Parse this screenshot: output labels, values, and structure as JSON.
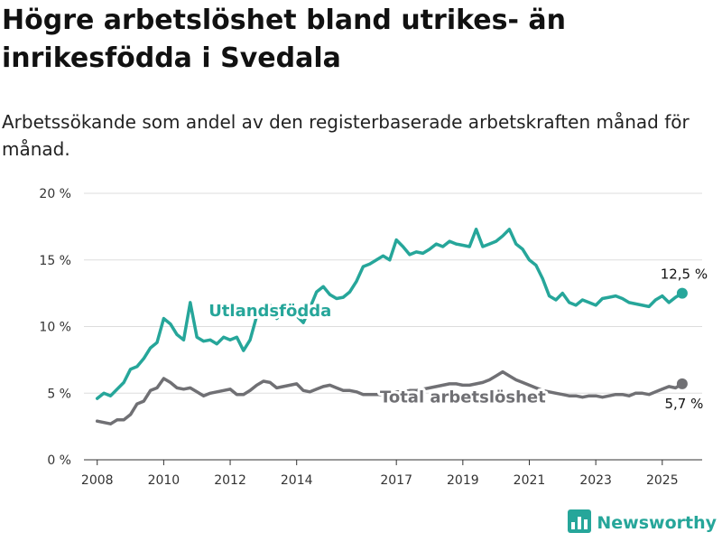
{
  "title": "Högre arbetslöshet bland utrikes- än inrikesfödda i Svedala",
  "subtitle": "Arbetssökande som andel av den registerbaserade arbetskraften månad för månad.",
  "brand": {
    "name": "Newsworthy",
    "icon": "bar-chart-logo-icon",
    "color": "#26a69a"
  },
  "chart_data": {
    "type": "line",
    "title": "Högre arbetslöshet bland utrikes- än inrikesfödda i Svedala",
    "subtitle": "Arbetssökande som andel av den registerbaserade arbetskraften månad för månad.",
    "xlabel": "",
    "ylabel": "",
    "xlim": [
      2007.6,
      2026.2
    ],
    "ylim": [
      0,
      20
    ],
    "x_ticks": [
      2008,
      2010,
      2012,
      2014,
      2017,
      2019,
      2021,
      2023,
      2025
    ],
    "x_tick_labels": [
      "2008",
      "2010",
      "2012",
      "2014",
      "2017",
      "2019",
      "2021",
      "2023",
      "2025"
    ],
    "y_ticks": [
      0,
      5,
      10,
      15,
      20
    ],
    "y_tick_labels": [
      "0 %",
      "5 %",
      "10 %",
      "15 %",
      "20 %"
    ],
    "grid": true,
    "legend": "none",
    "series": [
      {
        "name": "Utlandsfödda",
        "color": "#26a69a",
        "end_label": "12,5 %",
        "x": [
          2008.0,
          2008.2,
          2008.4,
          2008.6,
          2008.8,
          2009.0,
          2009.2,
          2009.4,
          2009.6,
          2009.8,
          2010.0,
          2010.2,
          2010.4,
          2010.6,
          2010.8,
          2011.0,
          2011.2,
          2011.4,
          2011.6,
          2011.8,
          2012.0,
          2012.2,
          2012.4,
          2012.6,
          2012.8,
          2013.0,
          2013.2,
          2013.4,
          2013.6,
          2013.8,
          2014.0,
          2014.2,
          2014.4,
          2014.6,
          2014.8,
          2015.0,
          2015.2,
          2015.4,
          2015.6,
          2015.8,
          2016.0,
          2016.2,
          2016.4,
          2016.6,
          2016.8,
          2017.0,
          2017.2,
          2017.4,
          2017.6,
          2017.8,
          2018.0,
          2018.2,
          2018.4,
          2018.6,
          2018.8,
          2019.0,
          2019.2,
          2019.4,
          2019.6,
          2019.8,
          2020.0,
          2020.2,
          2020.4,
          2020.6,
          2020.8,
          2021.0,
          2021.2,
          2021.4,
          2021.6,
          2021.8,
          2022.0,
          2022.2,
          2022.4,
          2022.6,
          2022.8,
          2023.0,
          2023.2,
          2023.4,
          2023.6,
          2023.8,
          2024.0,
          2024.2,
          2024.4,
          2024.6,
          2024.8,
          2025.0,
          2025.2,
          2025.4,
          2025.6
        ],
        "y": [
          4.6,
          5.0,
          4.8,
          5.3,
          5.8,
          6.8,
          7.0,
          7.6,
          8.4,
          8.8,
          10.6,
          10.2,
          9.4,
          9.0,
          11.8,
          9.2,
          8.9,
          9.0,
          8.7,
          9.2,
          9.0,
          9.2,
          8.2,
          9.0,
          10.8,
          11.4,
          11.6,
          10.6,
          11.1,
          10.7,
          10.8,
          10.3,
          11.4,
          12.6,
          13.0,
          12.4,
          12.1,
          12.2,
          12.6,
          13.4,
          14.5,
          14.7,
          15.0,
          15.3,
          15.0,
          16.5,
          16.0,
          15.4,
          15.6,
          15.5,
          15.8,
          16.2,
          16.0,
          16.4,
          16.2,
          16.1,
          16.0,
          17.3,
          16.0,
          16.2,
          16.4,
          16.8,
          17.3,
          16.2,
          15.8,
          15.0,
          14.6,
          13.6,
          12.3,
          12.0,
          12.5,
          11.8,
          11.6,
          12.0,
          11.8,
          11.6,
          12.1,
          12.2,
          12.3,
          12.1,
          11.8,
          11.7,
          11.6,
          11.5,
          12.0,
          12.3,
          11.8,
          12.2,
          12.5
        ]
      },
      {
        "name": "Total arbetslöshet",
        "color": "#707074",
        "end_label": "5,7 %",
        "x": [
          2008.0,
          2008.2,
          2008.4,
          2008.6,
          2008.8,
          2009.0,
          2009.2,
          2009.4,
          2009.6,
          2009.8,
          2010.0,
          2010.2,
          2010.4,
          2010.6,
          2010.8,
          2011.0,
          2011.2,
          2011.4,
          2011.6,
          2011.8,
          2012.0,
          2012.2,
          2012.4,
          2012.6,
          2012.8,
          2013.0,
          2013.2,
          2013.4,
          2013.6,
          2013.8,
          2014.0,
          2014.2,
          2014.4,
          2014.6,
          2014.8,
          2015.0,
          2015.2,
          2015.4,
          2015.6,
          2015.8,
          2016.0,
          2016.2,
          2016.4,
          2016.6,
          2016.8,
          2017.0,
          2017.2,
          2017.4,
          2017.6,
          2017.8,
          2018.0,
          2018.2,
          2018.4,
          2018.6,
          2018.8,
          2019.0,
          2019.2,
          2019.4,
          2019.6,
          2019.8,
          2020.0,
          2020.2,
          2020.4,
          2020.6,
          2020.8,
          2021.0,
          2021.2,
          2021.4,
          2021.6,
          2021.8,
          2022.0,
          2022.2,
          2022.4,
          2022.6,
          2022.8,
          2023.0,
          2023.2,
          2023.4,
          2023.6,
          2023.8,
          2024.0,
          2024.2,
          2024.4,
          2024.6,
          2024.8,
          2025.0,
          2025.2,
          2025.4,
          2025.6
        ],
        "y": [
          2.9,
          2.8,
          2.7,
          3.0,
          3.0,
          3.4,
          4.2,
          4.4,
          5.2,
          5.4,
          6.1,
          5.8,
          5.4,
          5.3,
          5.4,
          5.1,
          4.8,
          5.0,
          5.1,
          5.2,
          5.3,
          4.9,
          4.9,
          5.2,
          5.6,
          5.9,
          5.8,
          5.4,
          5.5,
          5.6,
          5.7,
          5.2,
          5.1,
          5.3,
          5.5,
          5.6,
          5.4,
          5.2,
          5.2,
          5.1,
          4.9,
          4.9,
          4.9,
          4.9,
          5.0,
          5.1,
          5.1,
          5.2,
          5.2,
          5.3,
          5.4,
          5.5,
          5.6,
          5.7,
          5.7,
          5.6,
          5.6,
          5.7,
          5.8,
          6.0,
          6.3,
          6.6,
          6.3,
          6.0,
          5.8,
          5.6,
          5.4,
          5.2,
          5.1,
          5.0,
          4.9,
          4.8,
          4.8,
          4.7,
          4.8,
          4.8,
          4.7,
          4.8,
          4.9,
          4.9,
          4.8,
          5.0,
          5.0,
          4.9,
          5.1,
          5.3,
          5.5,
          5.4,
          5.7
        ]
      }
    ]
  }
}
